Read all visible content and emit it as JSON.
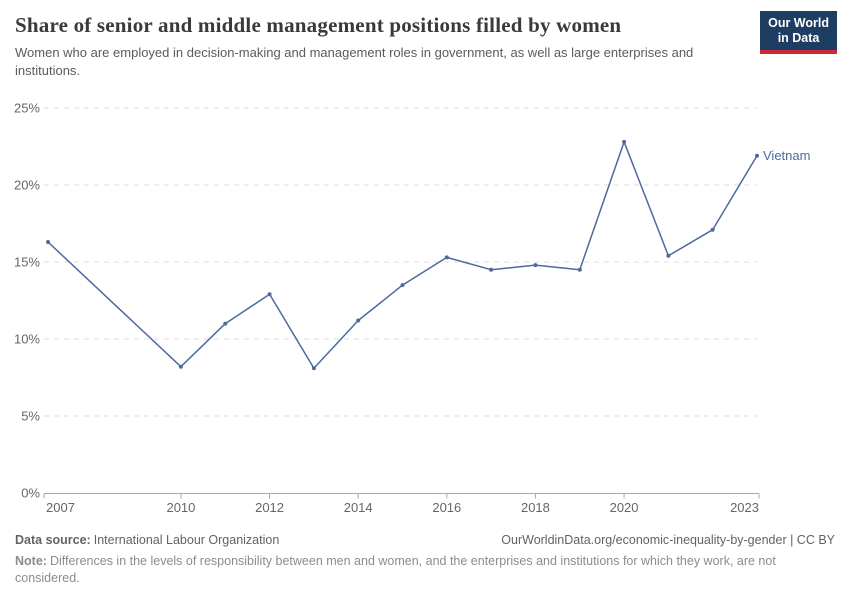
{
  "header": {
    "title": "Share of senior and middle management positions filled by women",
    "subtitle": "Women who are employed in decision-making and management roles in government, as well as large enterprises and institutions.",
    "logo_line1": "Our World",
    "logo_line2": "in Data",
    "logo_colors": {
      "background": "#1d3d63",
      "underline": "#cc2936"
    }
  },
  "chart_data": {
    "type": "line",
    "title": "Share of senior and middle management positions filled by women",
    "unit": "%",
    "grid": "horizontal-dashed",
    "legend_position": "line-end-label",
    "end_label": "Vietnam",
    "xlim": [
      2007,
      2023
    ],
    "ylim": [
      0,
      25
    ],
    "series": [
      {
        "name": "Vietnam",
        "color": "#4c6a9c",
        "x": [
          2007,
          2010,
          2011,
          2012,
          2013,
          2014,
          2015,
          2016,
          2017,
          2018,
          2019,
          2020,
          2021,
          2022,
          2023
        ],
        "values": [
          16.3,
          8.2,
          11.0,
          12.9,
          8.1,
          11.2,
          13.5,
          15.3,
          14.5,
          14.8,
          14.5,
          22.8,
          15.4,
          17.1,
          21.9
        ]
      }
    ],
    "x_ticks": [
      {
        "year": 2007,
        "label": "2007"
      },
      {
        "year": 2010,
        "label": "2010"
      },
      {
        "year": 2012,
        "label": "2012"
      },
      {
        "year": 2014,
        "label": "2014"
      },
      {
        "year": 2016,
        "label": "2016"
      },
      {
        "year": 2018,
        "label": "2018"
      },
      {
        "year": 2020,
        "label": "2020"
      },
      {
        "year": 2023,
        "label": "2023"
      }
    ],
    "y_ticks": [
      {
        "value": 0,
        "label": "0%"
      },
      {
        "value": 5,
        "label": "5%"
      },
      {
        "value": 10,
        "label": "10%"
      },
      {
        "value": 15,
        "label": "15%"
      },
      {
        "value": 20,
        "label": "20%"
      },
      {
        "value": 25,
        "label": "25%"
      }
    ],
    "colors": {
      "gridline": "#dddddd",
      "axis": "#a9a9a9",
      "tick_label": "#666666"
    }
  },
  "footer": {
    "source_label": "Data source:",
    "source_value": "International Labour Organization",
    "attribution": "OurWorldinData.org/economic-inequality-by-gender | CC BY",
    "note_label": "Note:",
    "note_text": "Differences in the levels of responsibility between men and women, and the enterprises and institutions for which they work, are not considered."
  }
}
